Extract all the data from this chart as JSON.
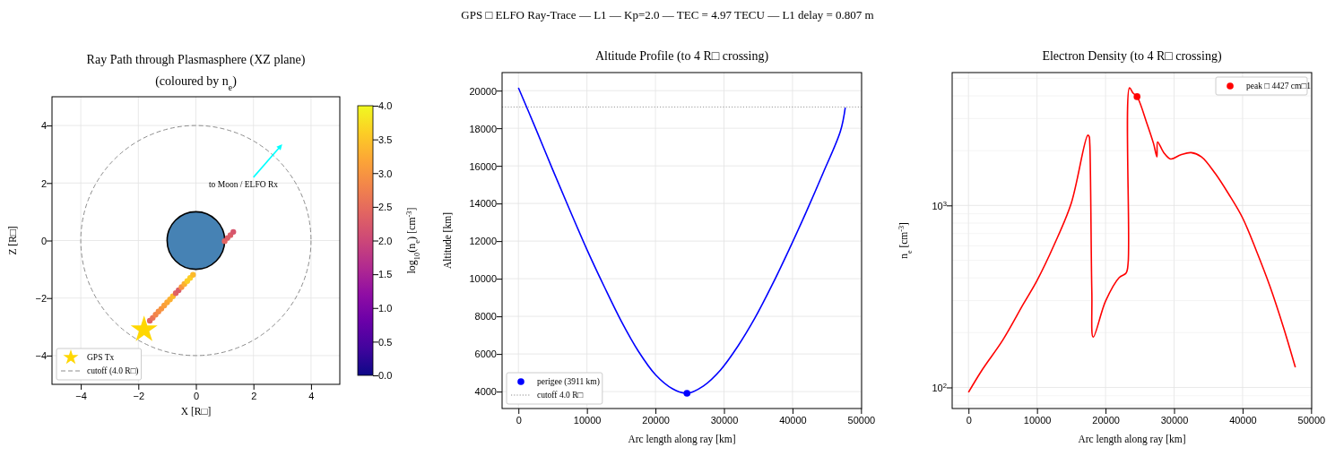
{
  "chart_data": [
    {
      "type": "scatter",
      "title": "Ray Path through Plasmasphere (XZ plane)\n(coloured by n$_{e}$)",
      "xlabel": "X [R□]",
      "ylabel": "Z [R□]",
      "clabel": "log$_{10}$(n$_{e}$) [cm$^{-3}$]",
      "annotations": [
        "GPS □ ELFO Ray-Trace  —  L1  —  Kp=2.0  —  TEC = 4.97 TECU  —  L1 delay = 0.807 m",
        "to Moon / ELFO Rx",
        "cutoff (4.0 R□)"
      ],
      "xlim": [
        -5,
        5
      ],
      "ylim": [
        -5,
        5
      ],
      "xticks": [
        -4,
        -2,
        0,
        2,
        4
      ],
      "yticks": [
        -4,
        -2,
        0,
        2,
        4
      ],
      "clim": [
        0,
        4
      ],
      "cticks": [
        {
          "value": 0,
          "label": "0.0"
        },
        0.5,
        {
          "value": 1,
          "label": "1.0"
        },
        1.5,
        {
          "value": 2,
          "label": "2.0"
        },
        2.5,
        {
          "value": 3,
          "label": "3.0"
        },
        3.5,
        {
          "value": 4,
          "label": "4.0"
        }
      ],
      "grid": true,
      "legend": "bottom left",
      "series": [
        {
          "marker": "circle",
          "x": [
            -1.6,
            -1.5,
            -1.4,
            -1.3,
            -1.2,
            -1.1,
            -1.0,
            -0.9,
            -0.8,
            -0.7,
            -0.6,
            -0.5,
            -0.4,
            -0.3,
            -0.2,
            -0.1,
            1.0,
            1.1,
            1.2,
            1.3
          ],
          "values": [
            -2.79,
            -2.69,
            -2.58,
            -2.47,
            -2.37,
            -2.26,
            -2.15,
            -2.05,
            -1.94,
            -1.83,
            -1.73,
            -1.62,
            -1.51,
            -1.41,
            -1.3,
            -1.19,
            -0.02,
            0.09,
            0.19,
            0.3
          ],
          "colors": [
            "#e16462",
            "#ea7457",
            "#f2844b",
            "#f58c46",
            "#f89540",
            "#fa9e3b",
            "#fca636",
            "#fcb030",
            "#fcba2b",
            "#e16462",
            "#dc5d67",
            "#f89540",
            "#fcb030",
            "#fcce25",
            "#fcce25",
            "#fcba2b",
            "#e16462",
            "#dc5d67",
            "#dc5d67",
            "#d6566d"
          ]
        },
        {
          "name": "GPS Tx",
          "marker": "star",
          "color": "#ffd700",
          "x": [
            -1.8
          ],
          "values": [
            -3.1
          ]
        }
      ]
    },
    {
      "type": "line",
      "title": "Altitude Profile (to 4 R□ crossing)",
      "xlabel": "Arc length along ray [km]",
      "ylabel": "Altitude [km]",
      "xlim": [
        -2385,
        50085
      ],
      "ylim": [
        3100,
        20960
      ],
      "xticks": [
        0,
        10000,
        20000,
        30000,
        40000,
        50000
      ],
      "yticks": [
        4000,
        6000,
        8000,
        10000,
        12000,
        14000,
        16000,
        18000,
        20000
      ],
      "grid": true,
      "legend": "bottom left",
      "ref_lines": [
        {
          "axis": "y",
          "value": 19130,
          "label": "cutoff 4.0 R□",
          "color": "#808080",
          "line_style": "dotted"
        }
      ],
      "series": [
        {
          "color": "#0000ff",
          "x": [
            0,
            2500,
            5000,
            7500,
            10000,
            12500,
            15000,
            17500,
            20000,
            22500,
            24600,
            27000,
            29500,
            32000,
            34500,
            37000,
            39500,
            42000,
            44500,
            47000,
            47700
          ],
          "values": [
            20150,
            18000,
            15800,
            13650,
            11550,
            9600,
            7750,
            6150,
            4900,
            4150,
            3911,
            4300,
            5150,
            6400,
            7900,
            9650,
            11550,
            13550,
            15650,
            17850,
            19100
          ]
        },
        {
          "type": "scatter",
          "name": "perigee (3911 km)",
          "marker": "circle",
          "color": "#0000ff",
          "x": [
            24600
          ],
          "values": [
            3911
          ]
        }
      ]
    },
    {
      "type": "line",
      "title": "Electron Density (to 4 R□ crossing)",
      "xlabel": "Arc length along ray [km]",
      "ylabel": "n$_{e}$ [cm$^{-3}$]",
      "xlim": [
        -2385,
        50085
      ],
      "ylim": [
        76.6,
        5370
      ],
      "log": "y",
      "xticks": [
        0,
        10000,
        20000,
        30000,
        40000,
        50000
      ],
      "yticks": [
        {
          "value": 100,
          "label": "10$^{2}$"
        },
        {
          "value": 1000,
          "label": "10$^{3}$"
        }
      ],
      "grid": true,
      "legend": "top right",
      "series": [
        {
          "color": "#ff0000",
          "x": [
            0,
            2000,
            5000,
            8000,
            10000,
            12500,
            15000,
            17400,
            17600,
            17700,
            18000,
            18200,
            20000,
            22000,
            23000,
            23300,
            23500,
            24000,
            24600,
            26000,
            27000,
            27500,
            27600,
            28500,
            29500,
            31000,
            32500,
            34000,
            36000,
            38000,
            40000,
            42000,
            44000,
            46000,
            47700
          ],
          "values": [
            94,
            125,
            182,
            287,
            387,
            608,
            1030,
            2430,
            2400,
            2190,
            333,
            189,
            298,
            402,
            425,
            486,
            4430,
            4150,
            3960,
            2850,
            2190,
            1850,
            2230,
            1950,
            1800,
            1900,
            1950,
            1850,
            1500,
            1150,
            854,
            565,
            359,
            212,
            129
          ]
        },
        {
          "type": "scatter",
          "name": "peak □ 4427 cm□1",
          "marker": "circle",
          "color": "#ff0000",
          "x": [
            24600
          ],
          "values": [
            3960
          ]
        }
      ]
    }
  ]
}
